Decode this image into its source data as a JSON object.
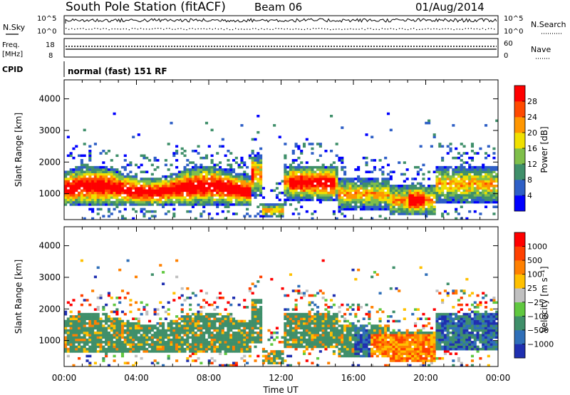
{
  "header": {
    "station": "South Pole Station (fitACF)",
    "beam": "Beam 06",
    "date": "01/Aug/2014"
  },
  "top_panels": {
    "nsky_label": "N.Sky",
    "nsearch_label": "N.Search",
    "noise_ticks_left": [
      "10^5",
      "10^0"
    ],
    "noise_ticks_right": [
      "10^5",
      "10^0"
    ],
    "freq_label_1": "Freq.",
    "freq_label_2": "[MHz]",
    "freq_ticks": [
      "18",
      "8"
    ],
    "nave_label": "Nave",
    "nave_ticks": [
      "60",
      "0"
    ],
    "cpid_label": "CPID",
    "cpid_value": "normal (fast) 151 RF"
  },
  "chart_data": [
    {
      "type": "heatmap",
      "name": "power",
      "ylabel": "Slant Range [km]",
      "xlabel": "Time UT",
      "x_ticks": [
        "00:00",
        "04:00",
        "08:00",
        "12:00",
        "16:00",
        "20:00",
        "00:00"
      ],
      "x_range_hours": [
        0,
        24
      ],
      "y_ticks": [
        1000,
        2000,
        3000,
        4000
      ],
      "ylim": [
        180,
        4600
      ],
      "colorbar": {
        "label": "Power [dB]",
        "ticks": [
          4,
          8,
          12,
          16,
          20,
          24,
          28
        ],
        "colors": [
          "#0000ff",
          "#2e5fc6",
          "#3f8f6a",
          "#7fbf4a",
          "#f0e000",
          "#ff9600",
          "#ff4a00",
          "#ff0000"
        ]
      }
    },
    {
      "type": "heatmap",
      "name": "velocity",
      "ylabel": "Slant Range [km]",
      "xlabel": "Time UT",
      "x_ticks": [
        "00:00",
        "04:00",
        "08:00",
        "12:00",
        "16:00",
        "20:00",
        "00:00"
      ],
      "x_range_hours": [
        0,
        24
      ],
      "y_ticks": [
        1000,
        2000,
        3000,
        4000
      ],
      "ylim": [
        180,
        4600
      ],
      "colorbar": {
        "label": "Velocity [m s⁻¹]",
        "ticks": [
          "1000",
          "500",
          "100",
          "25",
          "−25",
          "−100",
          "−500",
          "−1000"
        ],
        "colors": [
          "#1f2fb0",
          "#2f6fb8",
          "#3f8f6a",
          "#60c840",
          "#c0c0c0",
          "#ffc000",
          "#ff8000",
          "#ff4000",
          "#ff0000"
        ]
      }
    }
  ]
}
